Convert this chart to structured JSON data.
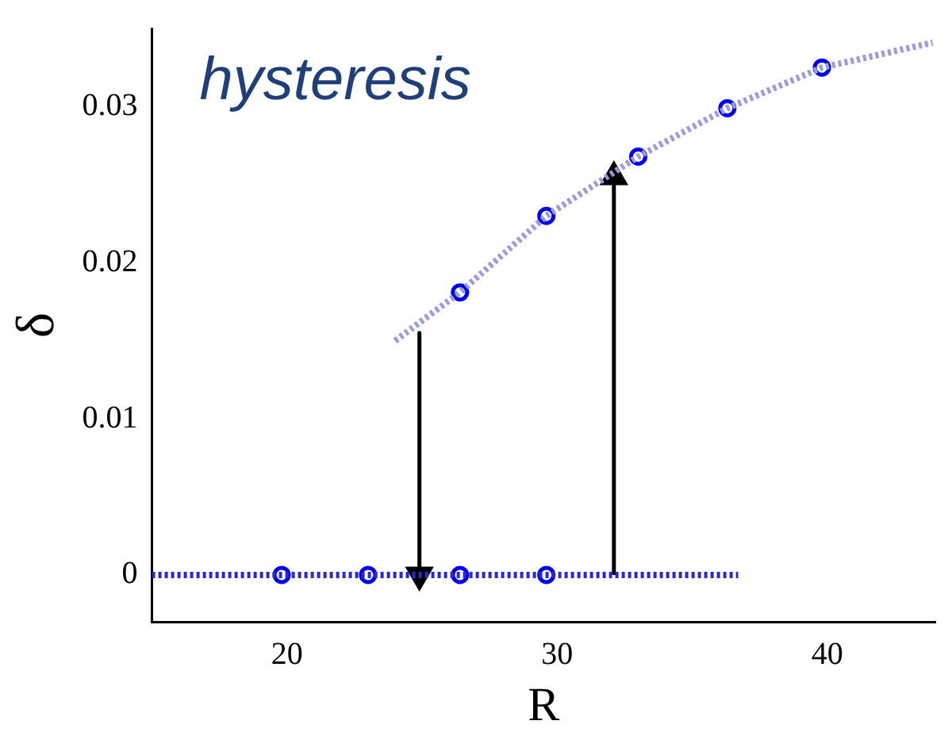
{
  "chart_data": {
    "type": "scatter",
    "xlabel": "R",
    "ylabel": "δ",
    "annotations": [
      "hysteresis"
    ],
    "xlim": [
      15,
      44
    ],
    "ylim": [
      -0.003,
      0.035
    ],
    "xticks": [
      20,
      30,
      40
    ],
    "yticks": [
      0,
      0.01,
      0.02,
      0.03
    ],
    "grid": false,
    "legend": false,
    "series": [
      {
        "type": "line",
        "color": "#9a9ae0",
        "line_style": "dotted",
        "marker": "none",
        "x": [
          24.0,
          26.4,
          29.6,
          33.0,
          36.3,
          39.8,
          43.9
        ],
        "values": [
          0.015,
          0.0181,
          0.023,
          0.0268,
          0.0299,
          0.0325,
          0.0341
        ]
      },
      {
        "type": "line",
        "color": "#2a2ad0",
        "line_style": "dotted",
        "marker": "none",
        "x": [
          15,
          36.7
        ],
        "values": [
          0,
          0
        ]
      },
      {
        "type": "scatter",
        "color": "#0000ff",
        "marker": "circle",
        "x": [
          26.4,
          29.6,
          33.0,
          36.3,
          39.8
        ],
        "values": [
          0.0181,
          0.023,
          0.0268,
          0.0299,
          0.0325
        ]
      },
      {
        "type": "scatter",
        "color": "#0000ff",
        "marker": "circle",
        "x": [
          19.8,
          23.0,
          26.4,
          29.6
        ],
        "values": [
          0,
          0,
          0,
          0
        ]
      },
      {
        "type": "line",
        "color": "#000000",
        "line_style": "solid",
        "marker": "triangle",
        "x": [
          24.9,
          24.9
        ],
        "values": [
          0.0155,
          0
        ]
      },
      {
        "type": "line",
        "color": "#000000",
        "line_style": "solid",
        "marker": "triangle",
        "x": [
          32.1,
          32.1
        ],
        "values": [
          0,
          0.0255
        ]
      }
    ]
  }
}
